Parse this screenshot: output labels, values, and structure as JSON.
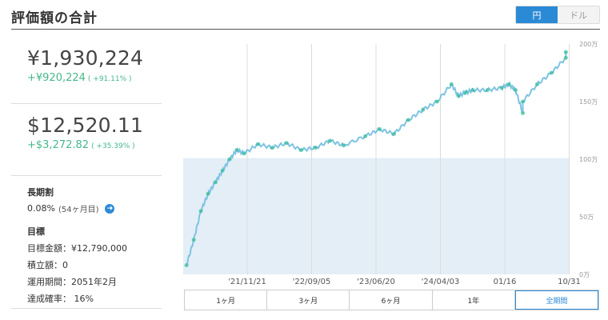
{
  "header": {
    "title": "評価額の合計"
  },
  "currency_toggle": [
    {
      "label": "円",
      "active": true
    },
    {
      "label": "ドル",
      "active": false
    }
  ],
  "summary_jpy": {
    "amount": "¥1,930,224",
    "gain": "+¥920,224",
    "gain_pct": "( +91.11% )"
  },
  "summary_usd": {
    "amount": "$12,520.11",
    "gain": "+$3,272.82",
    "gain_pct": "( +35.39% )"
  },
  "long_term": {
    "title": "長期割",
    "rate": "0.08%",
    "months": "(54ヶ月目)"
  },
  "goal": {
    "title": "目標",
    "lines": [
      "目標金額：¥12,790,000",
      "積立額：0",
      "運用期間：2051年2月",
      "達成確率： 16%"
    ]
  },
  "chart_data": {
    "type": "line",
    "x_ticks": [
      "'21/11/21",
      "'22/09/05",
      "'23/06/20",
      "'24/04/03",
      "01/16",
      "10/31"
    ],
    "y_ticks": [
      "0万",
      "50万",
      "100万",
      "150万",
      "200万"
    ],
    "ylim": [
      0,
      2000000
    ],
    "series": [
      {
        "color": "#7ec3e3",
        "x": [
          "2021-05",
          "2021-06",
          "2021-07",
          "2021-08",
          "2021-09",
          "2021-10",
          "2021-11",
          "2021-12",
          "2022-01",
          "2022-03",
          "2022-05",
          "2022-07",
          "2022-09",
          "2022-11",
          "2023-01",
          "2023-03",
          "2023-06",
          "2023-08",
          "2023-10",
          "2023-12",
          "2024-02",
          "2024-04",
          "2024-06",
          "2024-07",
          "2024-08",
          "2024-09",
          "2024-11",
          "2025-01",
          "2025-02",
          "2025-03",
          "2025-04",
          "2025-04",
          "2025-06",
          "2025-08",
          "2025-10",
          "2025-10"
        ],
        "values": [
          80000,
          300000,
          550000,
          700000,
          800000,
          900000,
          1000000,
          1080000,
          1050000,
          1130000,
          1100000,
          1140000,
          1080000,
          1100000,
          1160000,
          1120000,
          1200000,
          1260000,
          1220000,
          1340000,
          1430000,
          1500000,
          1650000,
          1550000,
          1580000,
          1600000,
          1600000,
          1620000,
          1650000,
          1600000,
          1400000,
          1500000,
          1650000,
          1750000,
          1880000,
          1930000
        ]
      }
    ],
    "shaded_band": {
      "from": 0,
      "to": 1010000,
      "color": "#e4eef7"
    },
    "grid": "vertical"
  },
  "periods": [
    {
      "label": "1ヶ月",
      "active": false
    },
    {
      "label": "3ヶ月",
      "active": false
    },
    {
      "label": "6ヶ月",
      "active": false
    },
    {
      "label": "1年",
      "active": false
    },
    {
      "label": "全期間",
      "active": true
    }
  ]
}
